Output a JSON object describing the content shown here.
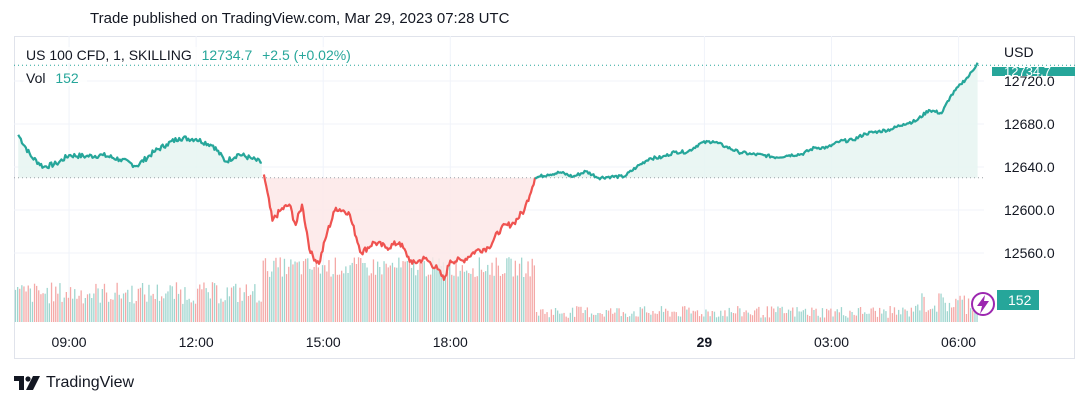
{
  "header": {
    "published": "Trade published on TradingView.com, Mar 29, 2023 07:28 UTC"
  },
  "legend": {
    "symbol": "US 100 CFD, 1, SKILLING",
    "price": "12734.7",
    "change": "+2.5 (+0.02%)",
    "vol_label": "Vol",
    "vol_value": "152"
  },
  "axis": {
    "currency": "USD"
  },
  "footer": {
    "brand": "TradingView"
  },
  "colors": {
    "up": "#26a69a",
    "down": "#ef5350",
    "up_fill": "#e6f4f1",
    "down_fill": "#fde8e8",
    "vol_up": "#9fd6cf",
    "vol_down": "#f4a9a7",
    "grid": "#f0f3fa",
    "baseline": "#9aa0a6",
    "accent_purple": "#9c27b0"
  },
  "chart_data": {
    "type": "line",
    "title": "",
    "xlabel": "",
    "ylabel": "USD",
    "ylim": [
      12523,
      12742
    ],
    "x_ticks": [
      "09:00",
      "12:00",
      "15:00",
      "18:00",
      "29",
      "03:00",
      "06:00"
    ],
    "y_ticks": [
      "12720.0",
      "12680.0",
      "12640.0",
      "12600.0",
      "12560.0"
    ],
    "baseline": 12630,
    "last_price": 12734.7,
    "last_volume": 152,
    "last_volume_label": "152",
    "series": [
      {
        "x_hours": [
          7.8,
          8.1,
          8.4,
          8.7,
          9.0,
          9.4,
          9.8,
          10.2,
          10.6,
          11.0,
          11.3,
          11.6,
          12.0,
          12.4,
          12.7,
          13.0,
          13.3,
          13.55
        ],
        "values": [
          12670,
          12650,
          12640,
          12643,
          12651,
          12650,
          12651,
          12647,
          12641,
          12654,
          12661,
          12667,
          12666,
          12660,
          12645,
          12652,
          12648,
          12644
        ]
      },
      {
        "x_hours": [
          13.6,
          13.8,
          14.0,
          14.2,
          14.35,
          14.5,
          14.7,
          14.9,
          15.1,
          15.3,
          15.6,
          15.9,
          16.2,
          16.5,
          16.8,
          17.1,
          17.4,
          17.7,
          17.85,
          18.0,
          18.3,
          18.6,
          18.9,
          19.2,
          19.5,
          19.75,
          20.0
        ],
        "values": [
          12633,
          12590,
          12600,
          12605,
          12586,
          12605,
          12560,
          12550,
          12580,
          12602,
          12598,
          12560,
          12570,
          12565,
          12570,
          12550,
          12555,
          12545,
          12535,
          12553,
          12553,
          12562,
          12565,
          12583,
          12588,
          12600,
          12630
        ]
      },
      {
        "x_hours": [
          20.0,
          20.3,
          20.6,
          20.9,
          21.2,
          21.5,
          21.8,
          22.1,
          22.4,
          22.7,
          23.0,
          23.3,
          23.6,
          23.9,
          24.2,
          24.5,
          24.8,
          25.1,
          25.4,
          25.7,
          26.0,
          26.3,
          26.6,
          26.9,
          27.2,
          27.5,
          27.8,
          28.1,
          28.4,
          28.7,
          29.0,
          29.3,
          29.6,
          29.8,
          30.05,
          30.25,
          30.45
        ],
        "values": [
          12630,
          12633,
          12635,
          12631,
          12636,
          12630,
          12631,
          12631,
          12640,
          12648,
          12649,
          12654,
          12654,
          12662,
          12664,
          12659,
          12654,
          12652,
          12651,
          12649,
          12651,
          12652,
          12658,
          12658,
          12664,
          12665,
          12671,
          12673,
          12675,
          12680,
          12683,
          12693,
          12690,
          12705,
          12717,
          12725,
          12737
        ]
      }
    ],
    "volume": {
      "note": "",
      "x_hours_step": 0.05,
      "max": 300
    }
  }
}
